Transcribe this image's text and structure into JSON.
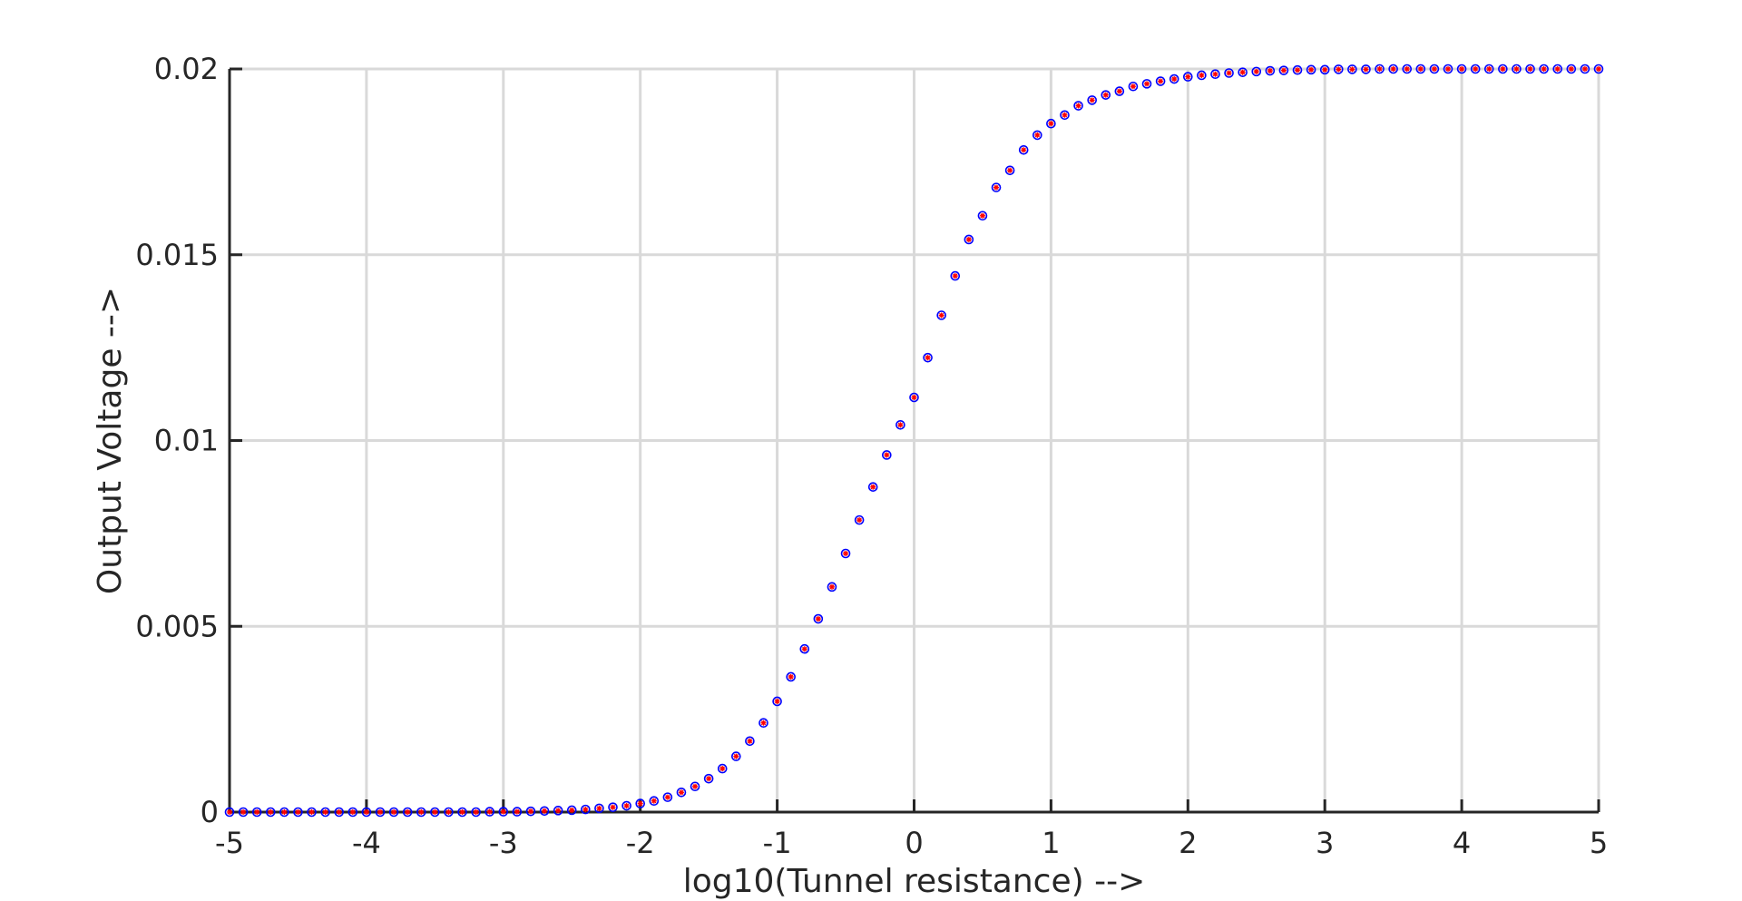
{
  "chart_data": {
    "type": "scatter",
    "xlabel": "log10(Tunnel resistance) -->",
    "ylabel": "Output Voltage -->",
    "xlim": [
      -5,
      5
    ],
    "ylim": [
      0,
      0.02
    ],
    "x_ticks": [
      -5,
      -4,
      -3,
      -2,
      -1,
      0,
      1,
      2,
      3,
      4,
      5
    ],
    "y_ticks": [
      0,
      0.005,
      0.01,
      0.015,
      0.02
    ],
    "x_tick_labels": [
      "-5",
      "-4",
      "-3",
      "-2",
      "-1",
      "0",
      "1",
      "2",
      "3",
      "4",
      "5"
    ],
    "y_tick_labels": [
      "0",
      "0.005",
      "0.01",
      "0.015",
      "0.02"
    ],
    "grid": true,
    "marker": {
      "shape": "asterisk-in-circle",
      "circle_color": "#0000ff",
      "asterisk_color": "#ff0000"
    },
    "series": [
      {
        "x": [
          -5.0,
          -4.9,
          -4.8,
          -4.7,
          -4.6,
          -4.5,
          -4.4,
          -4.3,
          -4.2,
          -4.1,
          -4.0,
          -3.9,
          -3.8,
          -3.7,
          -3.6,
          -3.5,
          -3.4,
          -3.3,
          -3.2,
          -3.1,
          -3.0,
          -2.9,
          -2.8,
          -2.7,
          -2.6,
          -2.5,
          -2.4,
          -2.3,
          -2.2,
          -2.1,
          -2.0,
          -1.9,
          -1.8,
          -1.7,
          -1.6,
          -1.5,
          -1.4,
          -1.3,
          -1.2,
          -1.1,
          -1.0,
          -0.9,
          -0.8,
          -0.7,
          -0.6,
          -0.5,
          -0.4,
          -0.3,
          -0.2,
          -0.1,
          0.0,
          0.1,
          0.2,
          0.3,
          0.4,
          0.5,
          0.6,
          0.7,
          0.8,
          0.9,
          1.0,
          1.1,
          1.2,
          1.3,
          1.4,
          1.5,
          1.6,
          1.7,
          1.8,
          1.9,
          2.0,
          2.1,
          2.2,
          2.3,
          2.4,
          2.5,
          2.6,
          2.7,
          2.8,
          2.9,
          3.0,
          3.1,
          3.2,
          3.3,
          3.4,
          3.5,
          3.6,
          3.7,
          3.8,
          3.9,
          4.0,
          4.1,
          4.2,
          4.3,
          4.4,
          4.5,
          4.6,
          4.7,
          4.8,
          4.9,
          5.0
        ],
        "y": [
          0.0,
          0.0,
          0.0,
          0.0,
          0.0,
          0.0,
          0.0,
          0.0,
          0.0,
          0.0,
          0.0,
          0.0,
          0.0,
          0.0,
          0.0,
          0.0,
          0.0,
          0.0,
          0.0,
          1e-05,
          1e-05,
          1e-05,
          2e-05,
          3e-05,
          4e-05,
          5e-05,
          7e-05,
          0.0001,
          0.00013,
          0.00017,
          0.00023,
          0.0003,
          0.0004,
          0.00053,
          0.00069,
          0.0009,
          0.00117,
          0.0015,
          0.00191,
          0.0024,
          0.00298,
          0.00364,
          0.00439,
          0.0052,
          0.00606,
          0.00696,
          0.00786,
          0.00875,
          0.00961,
          0.01042,
          0.01116,
          0.01223,
          0.01337,
          0.01443,
          0.01541,
          0.01605,
          0.01681,
          0.01727,
          0.01782,
          0.01822,
          0.01853,
          0.01876,
          0.01901,
          0.01916,
          0.0193,
          0.0194,
          0.01953,
          0.0196,
          0.01967,
          0.01973,
          0.01979,
          0.01983,
          0.01986,
          0.01989,
          0.01991,
          0.01993,
          0.01995,
          0.01996,
          0.01997,
          0.01998,
          0.01998,
          0.01999,
          0.01999,
          0.01999,
          0.02,
          0.02,
          0.02,
          0.02,
          0.02,
          0.02,
          0.02,
          0.02,
          0.02,
          0.02,
          0.02,
          0.02,
          0.02,
          0.02,
          0.02,
          0.02,
          0.02
        ]
      }
    ]
  }
}
